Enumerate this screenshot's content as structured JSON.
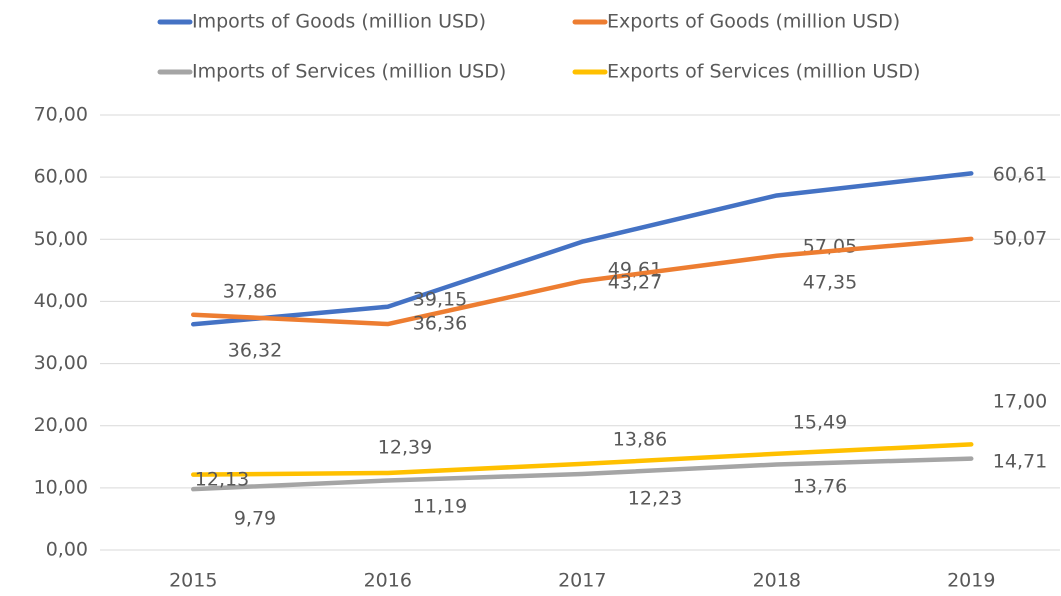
{
  "chart_data": {
    "type": "line",
    "categories": [
      "2015",
      "2016",
      "2017",
      "2018",
      "2019"
    ],
    "series": [
      {
        "name": "Imports of Goods (million USD)",
        "color": "#4472c4",
        "values": [
          36.32,
          39.15,
          49.61,
          57.05,
          60.61
        ],
        "value_labels": [
          "36,32",
          "39,15",
          "49,61",
          "57,05",
          "60,61"
        ]
      },
      {
        "name": "Exports of Goods (million USD)",
        "color": "#ed7d31",
        "values": [
          37.86,
          36.36,
          43.27,
          47.35,
          50.07
        ],
        "value_labels": [
          "37,86",
          "36,36",
          "43,27",
          "47,35",
          "50,07"
        ]
      },
      {
        "name": "Imports of Services (million USD)",
        "color": "#a5a5a5",
        "values": [
          9.79,
          11.19,
          12.23,
          13.76,
          14.71
        ],
        "value_labels": [
          "9,79",
          "11,19",
          "12,23",
          "13,76",
          "14,71"
        ]
      },
      {
        "name": "Exports of Services (million USD)",
        "color": "#ffc000",
        "values": [
          12.13,
          12.39,
          13.86,
          15.49,
          17.0
        ],
        "value_labels": [
          "12,13",
          "12,39",
          "13,86",
          "15,49",
          "17,00"
        ]
      }
    ],
    "ylim": [
      0,
      70
    ],
    "yticks": [
      {
        "value": 0,
        "label": "0,00"
      },
      {
        "value": 10,
        "label": "10,00"
      },
      {
        "value": 20,
        "label": "20,00"
      },
      {
        "value": 30,
        "label": "30,00"
      },
      {
        "value": 40,
        "label": "40,00"
      },
      {
        "value": 50,
        "label": "50,00"
      },
      {
        "value": 60,
        "label": "60,00"
      },
      {
        "value": 70,
        "label": "70,00"
      }
    ],
    "grid": true,
    "legend": "top"
  }
}
